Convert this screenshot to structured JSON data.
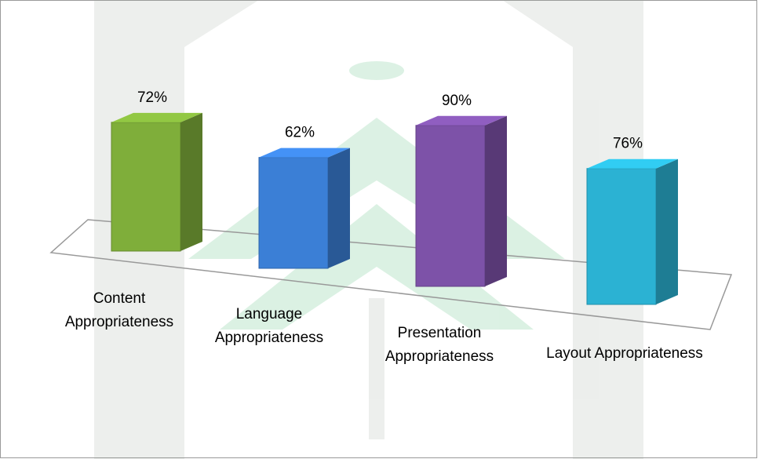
{
  "chart_data": {
    "type": "bar3d",
    "categories": [
      "Content Appropriateness",
      "Language Appropriateness",
      "Presentation Appropriateness",
      "Layout Appropriateness"
    ],
    "values": [
      72,
      62,
      90,
      76
    ],
    "value_labels": [
      "72%",
      "62%",
      "90%",
      "76%"
    ],
    "colors": [
      "#7fae3a",
      "#3b7fd6",
      "#7d52a8",
      "#2bb2d3"
    ]
  }
}
